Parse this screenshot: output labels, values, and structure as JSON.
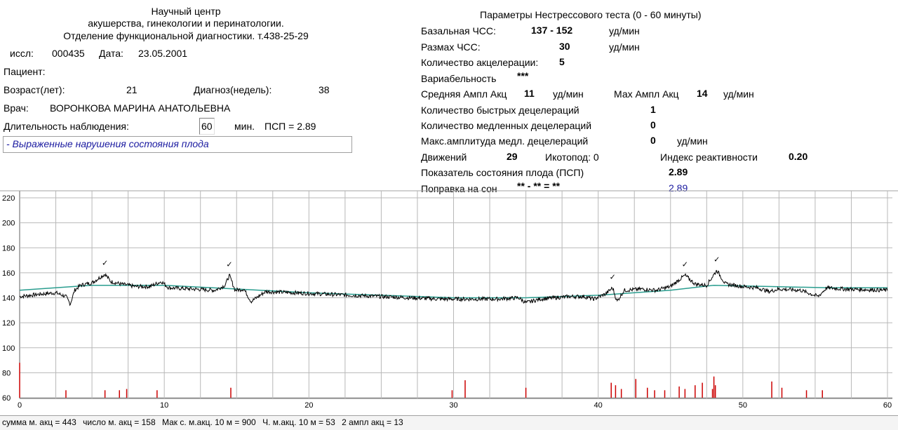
{
  "header": {
    "line1": "Научный центр",
    "line2": "акушерства, гинекологии и перинатологии.",
    "line3": "Отделение функциональной диагностики. т.438-25-29",
    "study_label": "иссл:",
    "study_value": "000435",
    "date_label": "Дата:",
    "date_value": "23.05.2001"
  },
  "patient": {
    "patient_label": "Пациент:",
    "age_label": "Возраст(лет):",
    "age_value": "21",
    "diagnosis_label": "Диагноз(недель):",
    "diagnosis_value": "38",
    "doctor_label": "Врач:",
    "doctor_value": "ВОРОНКОВА МАРИНА АНАТОЛЬЕВНА",
    "duration_label": "Длительность наблюдения:",
    "duration_value": "60",
    "duration_unit": "мин.",
    "psp_text": "ПСП = 2.89",
    "conclusion": "- Выраженные нарушения состояния плода"
  },
  "params": {
    "title": "Параметры Нестрессового теста (0 - 60 минуты)",
    "basal_label": "Базальная ЧСС:",
    "basal_value": "137 - 152",
    "basal_unit": "уд/мин",
    "range_label": "Размах ЧСС:",
    "range_value": "30",
    "range_unit": "уд/мин",
    "accel_count_label": "Количество  акцелерации:",
    "accel_count_value": "5",
    "variability_label": "Вариабельность",
    "variability_value": "***",
    "avg_ampl_label": "Средняя Ампл Акц",
    "avg_ampl_value": "11",
    "avg_ampl_unit": "уд/мин",
    "max_ampl_label": "Мах Ампл Акц",
    "max_ampl_value": "14",
    "max_ampl_unit": "уд/мин",
    "fast_decel_label": "Количество быстрых децелераций",
    "fast_decel_value": "1",
    "slow_decel_label": "Количество медленных децелераций",
    "slow_decel_value": "0",
    "max_slow_decel_label": "Макс.амплитуда медл. децелераций",
    "max_slow_decel_value": "0",
    "max_slow_decel_unit": "уд/мин",
    "movements_label": "Движений",
    "movements_value": "29",
    "hiccup_label": "Икотопод: 0",
    "reactivity_label": "Индекс реактивности",
    "reactivity_value": "0.20",
    "psp_label": "Показатель состояния плода (ПСП)",
    "psp_value": "2.89",
    "sleep_label": "Поправка на сон",
    "sleep_formula": "** - ** = **",
    "sleep_value": "2.89"
  },
  "footer": {
    "sum": "сумма м. акц = 443",
    "count": "число м. акц = 158",
    "max": "Мак с. м.акц. 10 м = 900",
    "ch": "Ч. м.акц. 10 м = 53",
    "ampl": "2 ампл акц = 13"
  },
  "colors": {
    "trace": "#000000",
    "baseline": "#2a9d8f",
    "grid": "#b8b8b8",
    "movements": "#cc0000",
    "blue_text": "#1a1aa0"
  },
  "chart_data": {
    "type": "line",
    "x_ticks": [
      "0",
      "10",
      "20",
      "30",
      "40",
      "50",
      "60"
    ],
    "y_ticks": [
      "60",
      "80",
      "100",
      "120",
      "140",
      "160",
      "180",
      "200",
      "220"
    ],
    "xlim": [
      0,
      60
    ],
    "ylim": [
      60,
      225
    ],
    "grid": true,
    "accel_marker": "✓",
    "accel_markers_x": [
      5.9,
      14.5,
      41.0,
      46.0,
      48.2
    ],
    "fhr_keypoints": [
      [
        0,
        141
      ],
      [
        1.5,
        143
      ],
      [
        2.5,
        144
      ],
      [
        3.2,
        141
      ],
      [
        3.5,
        135
      ],
      [
        3.8,
        146
      ],
      [
        4.2,
        150
      ],
      [
        5.0,
        152
      ],
      [
        5.9,
        159
      ],
      [
        6.3,
        153
      ],
      [
        7.0,
        151
      ],
      [
        8.0,
        149
      ],
      [
        9.0,
        149
      ],
      [
        9.8,
        153
      ],
      [
        10.3,
        148
      ],
      [
        12.0,
        147
      ],
      [
        13.5,
        146
      ],
      [
        14.2,
        150
      ],
      [
        14.5,
        158
      ],
      [
        14.9,
        146
      ],
      [
        15.5,
        147
      ],
      [
        16.0,
        137
      ],
      [
        17.0,
        145
      ],
      [
        19.0,
        144
      ],
      [
        21.0,
        143
      ],
      [
        23.0,
        142
      ],
      [
        25.0,
        141
      ],
      [
        27.0,
        140
      ],
      [
        29.0,
        139
      ],
      [
        31.0,
        139
      ],
      [
        33.0,
        139
      ],
      [
        34.5,
        140
      ],
      [
        35.0,
        136
      ],
      [
        36.0,
        139
      ],
      [
        38.0,
        141
      ],
      [
        39.0,
        141
      ],
      [
        39.7,
        139
      ],
      [
        40.5,
        143
      ],
      [
        41.0,
        148
      ],
      [
        41.3,
        137
      ],
      [
        41.8,
        146
      ],
      [
        43.0,
        147
      ],
      [
        44.0,
        146
      ],
      [
        45.0,
        149
      ],
      [
        46.0,
        158
      ],
      [
        46.7,
        151
      ],
      [
        47.5,
        150
      ],
      [
        48.2,
        162
      ],
      [
        48.8,
        151
      ],
      [
        50.0,
        149
      ],
      [
        51.0,
        148
      ],
      [
        51.8,
        145
      ],
      [
        52.5,
        147
      ],
      [
        54.0,
        146
      ],
      [
        55.2,
        141
      ],
      [
        55.8,
        148
      ],
      [
        57.0,
        147
      ],
      [
        60.0,
        146
      ]
    ],
    "baseline_keypoints": [
      [
        0,
        146
      ],
      [
        5,
        150
      ],
      [
        10,
        150
      ],
      [
        15,
        147
      ],
      [
        20,
        144
      ],
      [
        25,
        142
      ],
      [
        30,
        140
      ],
      [
        35,
        140
      ],
      [
        40,
        142
      ],
      [
        45,
        146
      ],
      [
        48,
        150
      ],
      [
        52,
        149
      ],
      [
        56,
        148
      ],
      [
        60,
        148
      ]
    ],
    "movement_marks": [
      [
        0.0,
        88
      ],
      [
        3.2,
        66
      ],
      [
        5.9,
        66
      ],
      [
        6.9,
        66
      ],
      [
        7.4,
        67
      ],
      [
        9.5,
        66
      ],
      [
        14.6,
        68
      ],
      [
        29.9,
        66
      ],
      [
        30.8,
        74
      ],
      [
        35.0,
        68
      ],
      [
        40.9,
        72
      ],
      [
        41.2,
        70
      ],
      [
        41.6,
        67
      ],
      [
        42.6,
        75
      ],
      [
        43.4,
        68
      ],
      [
        43.9,
        66
      ],
      [
        44.6,
        66
      ],
      [
        45.6,
        69
      ],
      [
        46.0,
        67
      ],
      [
        46.7,
        70
      ],
      [
        47.2,
        72
      ],
      [
        47.9,
        67
      ],
      [
        48.0,
        77
      ],
      [
        48.1,
        70
      ],
      [
        52.0,
        73
      ],
      [
        52.7,
        68
      ],
      [
        54.4,
        66
      ],
      [
        55.5,
        66
      ]
    ]
  }
}
